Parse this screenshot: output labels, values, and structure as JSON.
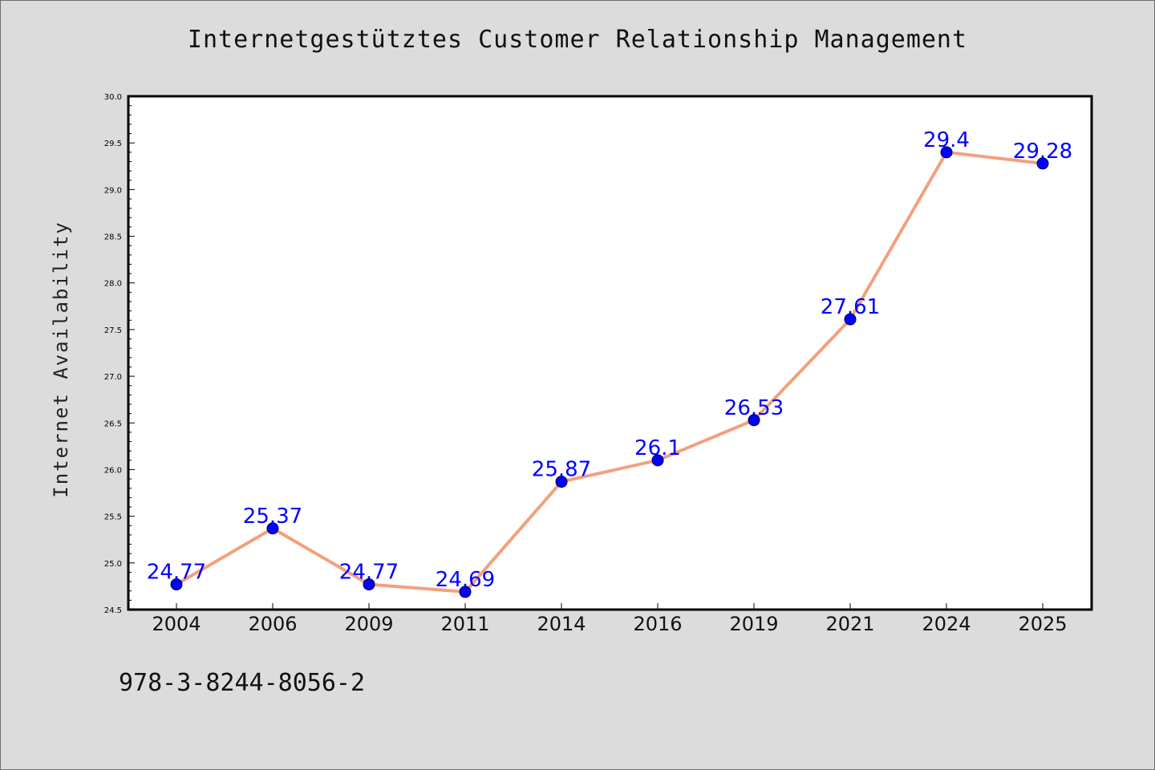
{
  "chart_data": {
    "type": "line",
    "title": "Internetgestütztes Customer Relationship Management",
    "xlabel": "",
    "ylabel": "Internet Availability",
    "categories": [
      "2004",
      "2006",
      "2009",
      "2011",
      "2014",
      "2016",
      "2019",
      "2021",
      "2024",
      "2025"
    ],
    "series": [
      {
        "values": [
          24.77,
          25.37,
          24.77,
          24.69,
          25.87,
          26.1,
          26.53,
          27.61,
          29.4,
          29.28
        ]
      }
    ],
    "data_labels": [
      "24.77",
      "25.37",
      "24.77",
      "24.69",
      "25.87",
      "26.1",
      "26.53",
      "27.61",
      "29.4",
      "29.28"
    ],
    "ylim": [
      24.5,
      30.0
    ],
    "yticks": [
      "24.5",
      "25.0",
      "25.5",
      "26.0",
      "26.5",
      "27.0",
      "27.5",
      "28.0",
      "28.5",
      "29.0",
      "29.5",
      "30.0"
    ],
    "grid": false,
    "line_color": "#f4a07c",
    "marker_color": "#0000ff",
    "label_color": "#0000ff"
  },
  "footer": {
    "isbn": "978-3-8244-8056-2"
  }
}
